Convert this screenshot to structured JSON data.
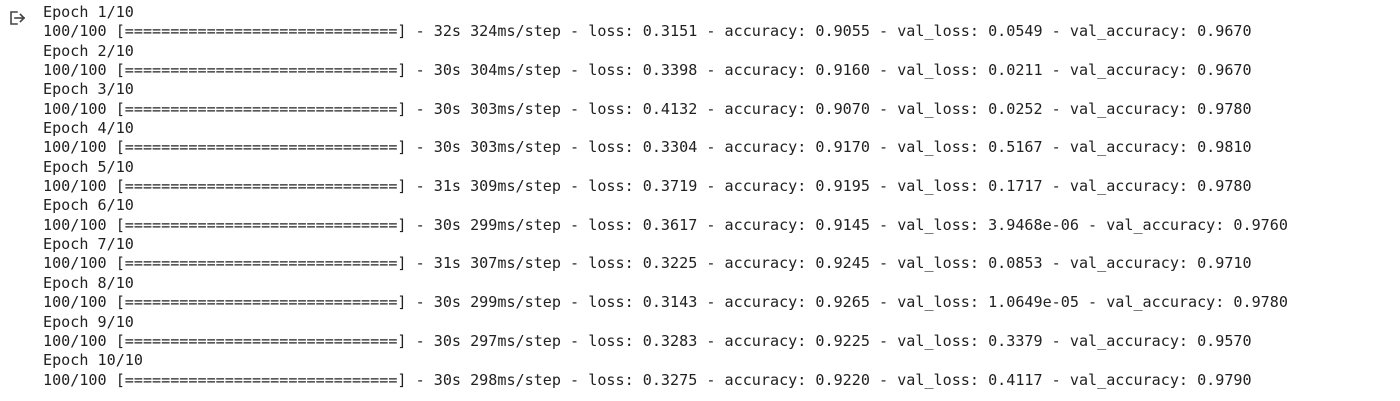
{
  "output": {
    "icon": "output-redirect-icon",
    "lines": [
      "Epoch 1/10",
      "100/100 [==============================] - 32s 324ms/step - loss: 0.3151 - accuracy: 0.9055 - val_loss: 0.0549 - val_accuracy: 0.9670",
      "Epoch 2/10",
      "100/100 [==============================] - 30s 304ms/step - loss: 0.3398 - accuracy: 0.9160 - val_loss: 0.0211 - val_accuracy: 0.9670",
      "Epoch 3/10",
      "100/100 [==============================] - 30s 303ms/step - loss: 0.4132 - accuracy: 0.9070 - val_loss: 0.0252 - val_accuracy: 0.9780",
      "Epoch 4/10",
      "100/100 [==============================] - 30s 303ms/step - loss: 0.3304 - accuracy: 0.9170 - val_loss: 0.5167 - val_accuracy: 0.9810",
      "Epoch 5/10",
      "100/100 [==============================] - 31s 309ms/step - loss: 0.3719 - accuracy: 0.9195 - val_loss: 0.1717 - val_accuracy: 0.9780",
      "Epoch 6/10",
      "100/100 [==============================] - 30s 299ms/step - loss: 0.3617 - accuracy: 0.9145 - val_loss: 3.9468e-06 - val_accuracy: 0.9760",
      "Epoch 7/10",
      "100/100 [==============================] - 31s 307ms/step - loss: 0.3225 - accuracy: 0.9245 - val_loss: 0.0853 - val_accuracy: 0.9710",
      "Epoch 8/10",
      "100/100 [==============================] - 30s 299ms/step - loss: 0.3143 - accuracy: 0.9265 - val_loss: 1.0649e-05 - val_accuracy: 0.9780",
      "Epoch 9/10",
      "100/100 [==============================] - 30s 297ms/step - loss: 0.3283 - accuracy: 0.9225 - val_loss: 0.3379 - val_accuracy: 0.9570",
      "Epoch 10/10",
      "100/100 [==============================] - 30s 298ms/step - loss: 0.3275 - accuracy: 0.9220 - val_loss: 0.4117 - val_accuracy: 0.9790"
    ]
  }
}
